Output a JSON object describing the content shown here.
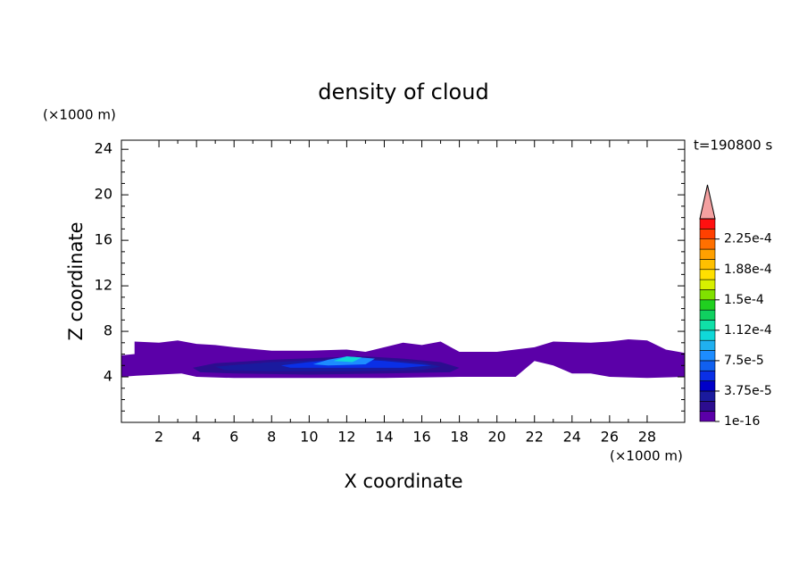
{
  "chart_data": {
    "type": "contour",
    "title": "density of cloud",
    "x_label": "X coordinate",
    "y_label": "Z coordinate",
    "x_unit": "(×1000 m)",
    "y_unit": "(×1000 m)",
    "time_label": "t=190800 s",
    "xlim": [
      0,
      30
    ],
    "ylim": [
      0,
      24.8
    ],
    "xticks": [
      2,
      4,
      6,
      8,
      10,
      12,
      14,
      16,
      18,
      20,
      22,
      24,
      26,
      28
    ],
    "yticks": [
      4,
      8,
      12,
      16,
      20,
      24
    ],
    "colorbar": {
      "levels": [
        1e-16,
        1.25e-05,
        2.5e-05,
        3.75e-05,
        5e-05,
        6.25e-05,
        7.5e-05,
        8.75e-05,
        0.0001,
        0.0001125,
        0.000125,
        0.0001375,
        0.00015,
        0.0001625,
        0.000175,
        0.0001875,
        0.0002,
        0.0002125,
        0.000225,
        0.0002375
      ],
      "colors": [
        "#5b00a8",
        "#2c0d8f",
        "#1a1a9e",
        "#0000c8",
        "#0a2fe6",
        "#1060f0",
        "#1d8cff",
        "#20b0f0",
        "#10d8d8",
        "#10e0a8",
        "#10d060",
        "#20d020",
        "#80e000",
        "#d8f000",
        "#ffe000",
        "#ffc000",
        "#ffa000",
        "#ff7000",
        "#ff4000",
        "#ff1010"
      ],
      "over_color": "#f4a0a0",
      "ticks": [
        1e-16,
        {
          "value": 3.75e-05,
          "label": "3.75e-5"
        },
        {
          "value": 7.5e-05,
          "label": "7.5e-5"
        },
        {
          "value": 0.0001125,
          "label": "1.12e-4"
        },
        {
          "value": 0.00015,
          "label": "1.5e-4"
        },
        {
          "value": 0.0001875,
          "label": "1.88e-4"
        },
        {
          "value": 0.000225,
          "label": "2.25e-4"
        }
      ]
    },
    "regions": [
      {
        "level": 1e-16,
        "x": [
          0,
          0.7,
          0.7,
          2,
          3,
          4,
          5,
          6,
          8,
          10,
          12,
          13,
          14,
          15,
          16,
          17,
          18,
          20,
          22,
          23,
          25,
          26,
          27,
          28,
          29,
          30,
          30,
          28,
          26,
          25,
          24,
          23,
          22,
          21,
          18,
          14,
          10,
          6,
          4,
          3.2,
          2,
          0.8,
          0
        ],
        "z": [
          5.9,
          6.0,
          7.1,
          7.0,
          7.2,
          6.9,
          6.8,
          6.6,
          6.3,
          6.3,
          6.4,
          6.2,
          6.6,
          7.0,
          6.8,
          7.1,
          6.2,
          6.2,
          6.6,
          7.1,
          7.0,
          7.1,
          7.3,
          7.2,
          6.4,
          6.1,
          4.0,
          3.9,
          4.0,
          4.3,
          4.3,
          5.0,
          5.4,
          4.0,
          4.0,
          3.9,
          3.9,
          3.9,
          4.0,
          4.3,
          4.2,
          4.1,
          4.0
        ]
      },
      {
        "level": 1.25e-05,
        "x": [
          3.8,
          5,
          8,
          11,
          13,
          15,
          17,
          18,
          17.5,
          14,
          10,
          6,
          4.2
        ],
        "z": [
          4.8,
          5.2,
          5.5,
          5.7,
          5.8,
          5.6,
          5.3,
          4.8,
          4.4,
          4.3,
          4.2,
          4.3,
          4.4
        ]
      },
      {
        "level": 2.5e-05,
        "x": [
          5,
          8,
          11,
          13,
          16,
          17,
          16,
          12,
          8,
          5.5
        ],
        "z": [
          4.9,
          5.3,
          5.5,
          5.6,
          5.3,
          4.9,
          4.6,
          4.5,
          4.5,
          4.6
        ]
      },
      {
        "level": 5e-05,
        "x": [
          8.5,
          10,
          12,
          14,
          16.5,
          15,
          12,
          9
        ],
        "z": [
          5.0,
          5.3,
          5.6,
          5.4,
          5.0,
          4.8,
          4.8,
          4.8
        ]
      },
      {
        "level": 7.5e-05,
        "x": [
          10.2,
          11,
          12,
          13.5,
          13,
          11
        ],
        "z": [
          5.1,
          5.5,
          5.8,
          5.6,
          5.1,
          5.0
        ]
      },
      {
        "level": 0.0001,
        "x": [
          11.3,
          12,
          12.8,
          12.3
        ],
        "z": [
          5.4,
          5.8,
          5.7,
          5.3
        ]
      }
    ]
  }
}
